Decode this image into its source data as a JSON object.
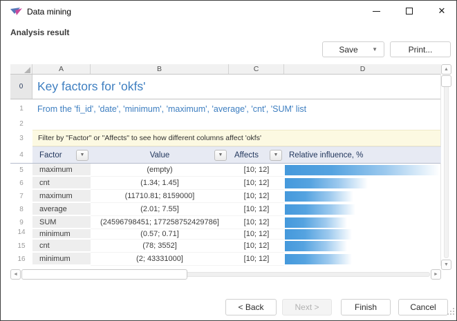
{
  "titlebar": {
    "title": "Data mining",
    "close_glyph": "✕"
  },
  "toolbar": {
    "section_title": "Analysis result",
    "save_label": "Save",
    "print_label": "Print...",
    "dropdown_glyph": "▼"
  },
  "grid": {
    "column_letters": [
      "A",
      "B",
      "C",
      "D"
    ],
    "title_row": {
      "num": "0",
      "text": "Key factors for 'okfs'"
    },
    "subtitle_row": {
      "num": "1",
      "text": "From the 'fi_id', 'date', 'minimum', 'maximum', 'average', 'cnt', 'SUM' list"
    },
    "empty_row": {
      "num": "2"
    },
    "note_row": {
      "num": "3",
      "text": "Filter by \"Factor\" or \"Affects\" to see how different columns affect 'okfs'"
    },
    "header_row": {
      "num": "4",
      "factor": "Factor",
      "value": "Value",
      "affects": "Affects",
      "influence": "Relative influence, %"
    },
    "rows": [
      {
        "num": "5",
        "factor": "maximum",
        "value": "(empty)",
        "affects": "[10; 12]",
        "influence_pct": 99
      },
      {
        "num": "6",
        "factor": "cnt",
        "value": "(1.34; 1.45]",
        "affects": "[10; 12]",
        "influence_pct": 53
      },
      {
        "num": "7",
        "factor": "maximum",
        "value": "(11710.81; 8159000]",
        "affects": "[10; 12]",
        "influence_pct": 44
      },
      {
        "num": "8",
        "factor": "average",
        "value": "(2.01; 7.55]",
        "affects": "[10; 12]",
        "influence_pct": 45
      },
      {
        "num": "9",
        "factor": "SUM",
        "value": "(24596798451; 177258752429786]",
        "affects": "[10; 12]",
        "influence_pct": 40
      },
      {
        "num": "14",
        "factor": "minimum",
        "value": "(0.57; 0.71]",
        "affects": "[10; 12]",
        "influence_pct": 43
      },
      {
        "num": "15",
        "factor": "cnt",
        "value": "(78; 3552]",
        "affects": "[10; 12]",
        "influence_pct": 40
      },
      {
        "num": "16",
        "factor": "minimum",
        "value": "(2; 43331000]",
        "affects": "[10; 12]",
        "influence_pct": 43
      }
    ]
  },
  "icons": {
    "up": "▲",
    "down": "▼",
    "left": "◄",
    "right": "►"
  },
  "footer": {
    "back": "< Back",
    "next": "Next >",
    "finish": "Finish",
    "cancel": "Cancel"
  },
  "colors": {
    "bar_blue": "#4a9dde",
    "title_blue": "#3d7ec0",
    "header_navy": "#21365c",
    "header_fill": "#e7eaf3",
    "note_yellow": "#fcf9e2"
  }
}
